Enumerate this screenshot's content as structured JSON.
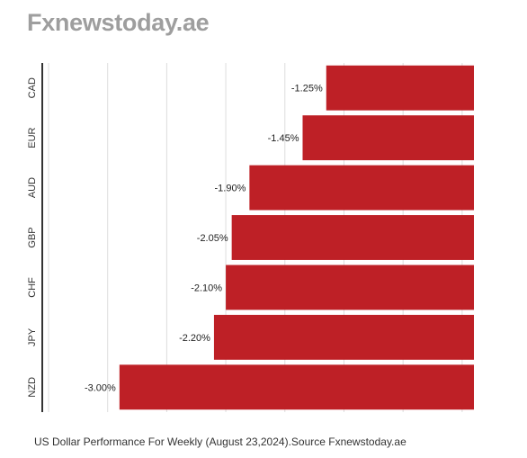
{
  "brand": "Fxnewstoday.ae",
  "caption": "US Dollar Performance For Weekly (August 23,2024).Source Fxnewstoday.ae",
  "colors": {
    "bar": "#be2026",
    "grid": "#dddddd",
    "axis": "#333333"
  },
  "chart_data": {
    "type": "bar",
    "orientation": "horizontal",
    "categories": [
      "CAD",
      "EUR",
      "AUD",
      "GBP",
      "CHF",
      "JPY",
      "NZD"
    ],
    "values": [
      -1.25,
      -1.45,
      -1.9,
      -2.05,
      -2.1,
      -2.2,
      -3.0
    ],
    "value_labels": [
      "-1.25%",
      "-1.45%",
      "-1.90%",
      "-2.05%",
      "-2.10%",
      "-2.20%",
      "-3.00%"
    ],
    "xlim": [
      -3.6,
      0
    ],
    "grid": true,
    "legend": "none"
  }
}
